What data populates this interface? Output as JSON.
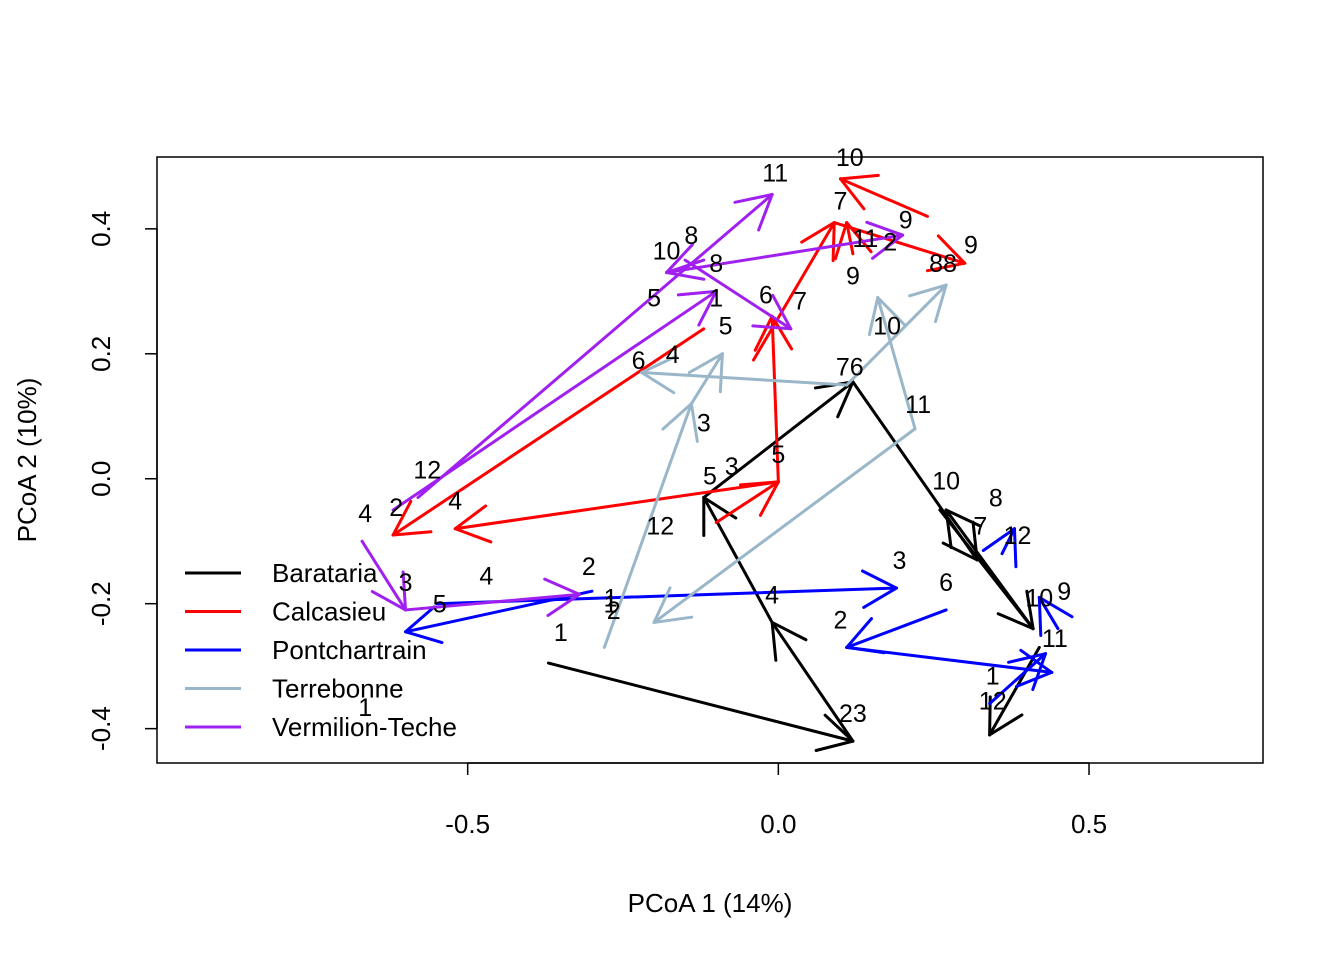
{
  "chart_data": {
    "type": "scatter",
    "title": "",
    "xlabel": "PCoA 1 (14%)",
    "ylabel": "PCoA 2 (10%)",
    "xlim": [
      -1.0,
      0.78
    ],
    "ylim": [
      -0.455,
      0.515
    ],
    "xticks": [
      -0.5,
      0.0,
      0.5
    ],
    "xtick_labels": [
      "-0.5",
      "0.0",
      "0.5"
    ],
    "yticks": [
      -0.4,
      -0.2,
      0.0,
      0.2,
      0.4
    ],
    "ytick_labels": [
      "-0.4",
      "-0.2",
      "0.0",
      "0.2",
      "0.4"
    ],
    "grid": false,
    "legend_position": "bottom-left",
    "series": [
      {
        "name": "Barataria",
        "color": "#000000",
        "points": [
          {
            "label": "1",
            "x": 0.34,
            "y": -0.41
          },
          {
            "label": "2",
            "x": 0.12,
            "y": -0.42
          },
          {
            "label": "3",
            "x": 0.12,
            "y": -0.42
          },
          {
            "label": "4",
            "x": -0.01,
            "y": -0.23
          },
          {
            "label": "5",
            "x": -0.12,
            "y": -0.03
          },
          {
            "label": "6",
            "x": 0.12,
            "y": 0.155
          },
          {
            "label": "7",
            "x": 0.32,
            "y": -0.13
          },
          {
            "label": "8",
            "x": 0.36,
            "y": -0.12
          },
          {
            "label": "9",
            "x": 0.41,
            "y": -0.24
          },
          {
            "label": "10",
            "x": 0.27,
            "y": -0.05
          },
          {
            "label": "11",
            "x": 0.42,
            "y": -0.27
          },
          {
            "label": "12",
            "x": 0.36,
            "y": -0.4
          }
        ]
      },
      {
        "name": "Calcasieu",
        "color": "#ff0000",
        "points": [
          {
            "label": "1",
            "x": 0.08,
            "y": 0.36
          },
          {
            "label": "2",
            "x": 0.08,
            "y": 0.36
          },
          {
            "label": "3",
            "x": 0.1,
            "y": 0.36
          },
          {
            "label": "4",
            "x": -0.52,
            "y": -0.08
          },
          {
            "label": "5",
            "x": 0.0,
            "y": -0.005
          },
          {
            "label": "6",
            "x": -0.01,
            "y": 0.26
          },
          {
            "label": "7",
            "x": 0.1,
            "y": 0.48
          },
          {
            "label": "8",
            "x": 0.3,
            "y": 0.345
          },
          {
            "label": "9",
            "x": 0.11,
            "y": 0.37
          },
          {
            "label": "10",
            "x": 0.12,
            "y": 0.48
          },
          {
            "label": "11",
            "x": 0.09,
            "y": 0.41
          },
          {
            "label": "12",
            "x": -0.62,
            "y": -0.09
          }
        ]
      },
      {
        "name": "Pontchartrain",
        "color": "#0000ff",
        "points": [
          {
            "label": "1",
            "x": -0.54,
            "y": -0.24
          },
          {
            "label": "2",
            "x": 0.11,
            "y": -0.27
          },
          {
            "label": "3",
            "x": 0.19,
            "y": -0.175
          },
          {
            "label": "4",
            "x": -0.47,
            "y": -0.2
          },
          {
            "label": "5",
            "x": -0.56,
            "y": -0.2
          },
          {
            "label": "6",
            "x": 0.27,
            "y": -0.21
          },
          {
            "label": "7",
            "x": 0.44,
            "y": -0.31
          },
          {
            "label": "8",
            "x": 0.38,
            "y": -0.08
          },
          {
            "label": "9",
            "x": 0.45,
            "y": -0.24
          },
          {
            "label": "10",
            "x": 0.43,
            "y": -0.19
          },
          {
            "label": "11",
            "x": 0.44,
            "y": -0.27
          },
          {
            "label": "12",
            "x": 0.36,
            "y": -0.36
          }
        ]
      },
      {
        "name": "Terrebonne",
        "color": "#9ab7c9",
        "points": [
          {
            "label": "1",
            "x": -0.28,
            "y": -0.27
          },
          {
            "label": "2",
            "x": -0.28,
            "y": -0.27
          },
          {
            "label": "3",
            "x": -0.14,
            "y": 0.12
          },
          {
            "label": "4",
            "x": -0.09,
            "y": 0.2
          },
          {
            "label": "5",
            "x": -0.12,
            "y": -0.015
          },
          {
            "label": "6",
            "x": 0.11,
            "y": 0.15
          },
          {
            "label": "7",
            "x": 0.11,
            "y": 0.15
          },
          {
            "label": "8",
            "x": 0.27,
            "y": 0.31
          },
          {
            "label": "9",
            "x": 0.16,
            "y": 0.28
          },
          {
            "label": "10",
            "x": 0.17,
            "y": 0.21
          },
          {
            "label": "11",
            "x": 0.22,
            "y": 0.08
          },
          {
            "label": "12",
            "x": -0.2,
            "y": -0.22
          }
        ]
      },
      {
        "name": "Vermilion-Teche",
        "color": "#a020f0",
        "points": [
          {
            "label": "1",
            "x": -0.32,
            "y": -0.185
          },
          {
            "label": "2",
            "x": -0.32,
            "y": -0.185
          },
          {
            "label": "3",
            "x": -0.6,
            "y": -0.21
          },
          {
            "label": "4",
            "x": -0.67,
            "y": -0.1
          },
          {
            "label": "5",
            "x": -0.6,
            "y": -0.215
          },
          {
            "label": "6",
            "x": 0.02,
            "y": 0.24
          },
          {
            "label": "7",
            "x": 0.02,
            "y": 0.24
          },
          {
            "label": "8",
            "x": 0.2,
            "y": 0.39
          },
          {
            "label": "9",
            "x": 0.2,
            "y": 0.39
          },
          {
            "label": "10",
            "x": -0.18,
            "y": 0.33
          },
          {
            "label": "11",
            "x": -0.01,
            "y": 0.455
          },
          {
            "label": "12",
            "x": -0.58,
            "y": -0.03
          }
        ]
      }
    ],
    "arrows": [
      {
        "series": "Barataria",
        "from": [
          -0.37,
          -0.295
        ],
        "to": [
          0.12,
          -0.42
        ]
      },
      {
        "series": "Barataria",
        "from": [
          0.12,
          -0.42
        ],
        "to": [
          -0.01,
          -0.23
        ]
      },
      {
        "series": "Barataria",
        "from": [
          -0.01,
          -0.23
        ],
        "to": [
          -0.12,
          -0.03
        ]
      },
      {
        "series": "Barataria",
        "from": [
          -0.12,
          -0.03
        ],
        "to": [
          0.12,
          0.155
        ]
      },
      {
        "series": "Barataria",
        "from": [
          0.12,
          0.155
        ],
        "to": [
          0.32,
          -0.13
        ]
      },
      {
        "series": "Barataria",
        "from": [
          0.26,
          -0.05
        ],
        "to": [
          0.41,
          -0.24
        ]
      },
      {
        "series": "Barataria",
        "from": [
          0.41,
          -0.24
        ],
        "to": [
          0.27,
          -0.05
        ]
      },
      {
        "series": "Barataria",
        "from": [
          0.42,
          -0.27
        ],
        "to": [
          0.34,
          -0.41
        ]
      },
      {
        "series": "Calcasieu",
        "from": [
          0.0,
          -0.005
        ],
        "to": [
          -0.52,
          -0.08
        ]
      },
      {
        "series": "Calcasieu",
        "from": [
          -0.12,
          0.24
        ],
        "to": [
          -0.62,
          -0.09
        ]
      },
      {
        "series": "Calcasieu",
        "from": [
          -0.1,
          -0.07
        ],
        "to": [
          0.0,
          -0.005
        ]
      },
      {
        "series": "Calcasieu",
        "from": [
          0.0,
          -0.005
        ],
        "to": [
          -0.01,
          0.26
        ]
      },
      {
        "series": "Calcasieu",
        "from": [
          -0.04,
          0.19
        ],
        "to": [
          0.09,
          0.41
        ]
      },
      {
        "series": "Calcasieu",
        "from": [
          0.09,
          0.41
        ],
        "to": [
          0.3,
          0.345
        ]
      },
      {
        "series": "Calcasieu",
        "from": [
          0.24,
          0.42
        ],
        "to": [
          0.1,
          0.48
        ]
      },
      {
        "series": "Calcasieu",
        "from": [
          0.12,
          0.36
        ],
        "to": [
          0.11,
          0.41
        ]
      },
      {
        "series": "Pontchartrain",
        "from": [
          -0.3,
          -0.18
        ],
        "to": [
          -0.6,
          -0.245
        ]
      },
      {
        "series": "Pontchartrain",
        "from": [
          -0.55,
          -0.2
        ],
        "to": [
          0.19,
          -0.175
        ]
      },
      {
        "series": "Pontchartrain",
        "from": [
          0.27,
          -0.21
        ],
        "to": [
          0.11,
          -0.27
        ]
      },
      {
        "series": "Pontchartrain",
        "from": [
          0.11,
          -0.27
        ],
        "to": [
          0.44,
          -0.31
        ]
      },
      {
        "series": "Pontchartrain",
        "from": [
          0.36,
          -0.12
        ],
        "to": [
          0.38,
          -0.08
        ]
      },
      {
        "series": "Pontchartrain",
        "from": [
          0.45,
          -0.24
        ],
        "to": [
          0.42,
          -0.19
        ]
      },
      {
        "series": "Pontchartrain",
        "from": [
          0.34,
          -0.36
        ],
        "to": [
          0.43,
          -0.28
        ]
      },
      {
        "series": "Terrebonne",
        "from": [
          -0.28,
          -0.27
        ],
        "to": [
          -0.14,
          0.12
        ]
      },
      {
        "series": "Terrebonne",
        "from": [
          -0.14,
          0.12
        ],
        "to": [
          -0.09,
          0.2
        ]
      },
      {
        "series": "Terrebonne",
        "from": [
          0.11,
          0.15
        ],
        "to": [
          -0.22,
          0.17
        ]
      },
      {
        "series": "Terrebonne",
        "from": [
          0.11,
          0.15
        ],
        "to": [
          0.27,
          0.31
        ]
      },
      {
        "series": "Terrebonne",
        "from": [
          0.22,
          0.08
        ],
        "to": [
          0.16,
          0.29
        ]
      },
      {
        "series": "Terrebonne",
        "from": [
          0.22,
          0.08
        ],
        "to": [
          -0.2,
          -0.23
        ]
      },
      {
        "series": "Vermilion-Teche",
        "from": [
          -0.58,
          -0.03
        ],
        "to": [
          -0.01,
          0.455
        ]
      },
      {
        "series": "Vermilion-Teche",
        "from": [
          -0.62,
          -0.05
        ],
        "to": [
          -0.1,
          0.3
        ]
      },
      {
        "series": "Vermilion-Teche",
        "from": [
          -0.18,
          0.33
        ],
        "to": [
          0.2,
          0.39
        ]
      },
      {
        "series": "Vermilion-Teche",
        "from": [
          -0.15,
          0.35
        ],
        "to": [
          0.02,
          0.24
        ]
      },
      {
        "series": "Vermilion-Teche",
        "from": [
          -0.67,
          -0.1
        ],
        "to": [
          -0.6,
          -0.21
        ]
      },
      {
        "series": "Vermilion-Teche",
        "from": [
          -0.6,
          -0.21
        ],
        "to": [
          -0.32,
          -0.185
        ]
      },
      {
        "series": "Vermilion-Teche",
        "from": [
          -0.12,
          0.35
        ],
        "to": [
          -0.18,
          0.33
        ]
      }
    ],
    "point_labels": [
      {
        "series": "Barataria",
        "text": "1",
        "x": 0.345,
        "y": -0.315
      },
      {
        "series": "Barataria",
        "text": "12",
        "x": 0.345,
        "y": -0.355
      },
      {
        "series": "Barataria",
        "text": "23",
        "x": 0.12,
        "y": -0.375
      },
      {
        "series": "Barataria",
        "text": "4",
        "x": -0.01,
        "y": -0.185
      },
      {
        "series": "Barataria",
        "text": "6",
        "x": 0.27,
        "y": -0.165
      },
      {
        "series": "Barataria",
        "text": "7",
        "x": 0.325,
        "y": -0.075
      },
      {
        "series": "Barataria",
        "text": "8",
        "x": 0.35,
        "y": -0.03
      },
      {
        "series": "Barataria",
        "text": "10",
        "x": 0.27,
        "y": -0.003
      },
      {
        "series": "Barataria",
        "text": "12",
        "x": 0.385,
        "y": -0.09
      },
      {
        "series": "Calcasieu",
        "text": "4",
        "x": -0.52,
        "y": -0.035
      },
      {
        "series": "Calcasieu",
        "text": "2",
        "x": -0.615,
        "y": -0.045
      },
      {
        "series": "Calcasieu",
        "text": "5",
        "x": 0.0,
        "y": 0.04
      },
      {
        "series": "Calcasieu",
        "text": "5",
        "x": -0.085,
        "y": 0.245
      },
      {
        "series": "Calcasieu",
        "text": "6",
        "x": -0.02,
        "y": 0.295
      },
      {
        "series": "Calcasieu",
        "text": "7",
        "x": 0.035,
        "y": 0.285
      },
      {
        "series": "Calcasieu",
        "text": "7",
        "x": 0.1,
        "y": 0.445
      },
      {
        "series": "Calcasieu",
        "text": "10",
        "x": 0.115,
        "y": 0.515
      },
      {
        "series": "Calcasieu",
        "text": "9",
        "x": 0.205,
        "y": 0.415
      },
      {
        "series": "Calcasieu",
        "text": "9",
        "x": 0.31,
        "y": 0.375
      },
      {
        "series": "Calcasieu",
        "text": "9",
        "x": 0.12,
        "y": 0.325
      },
      {
        "series": "Calcasieu",
        "text": "88",
        "x": 0.265,
        "y": 0.345
      },
      {
        "series": "Calcasieu",
        "text": "11",
        "x": 0.14,
        "y": 0.385
      },
      {
        "series": "Calcasieu",
        "text": "2",
        "x": 0.18,
        "y": 0.38
      },
      {
        "series": "Pontchartrain",
        "text": "1",
        "x": -0.35,
        "y": -0.245
      },
      {
        "series": "Pontchartrain",
        "text": "2",
        "x": 0.1,
        "y": -0.225
      },
      {
        "series": "Pontchartrain",
        "text": "3",
        "x": 0.195,
        "y": -0.13
      },
      {
        "series": "Pontchartrain",
        "text": "4",
        "x": -0.47,
        "y": -0.155
      },
      {
        "series": "Pontchartrain",
        "text": "10",
        "x": 0.42,
        "y": -0.19
      },
      {
        "series": "Pontchartrain",
        "text": "9",
        "x": 0.46,
        "y": -0.18
      },
      {
        "series": "Pontchartrain",
        "text": "11",
        "x": 0.445,
        "y": -0.255
      },
      {
        "series": "Terrebonne",
        "text": "1",
        "x": -0.27,
        "y": -0.19
      },
      {
        "series": "Terrebonne",
        "text": "2",
        "x": -0.265,
        "y": -0.21
      },
      {
        "series": "Terrebonne",
        "text": "3",
        "x": -0.12,
        "y": 0.09
      },
      {
        "series": "Terrebonne",
        "text": "3",
        "x": -0.075,
        "y": 0.02
      },
      {
        "series": "Terrebonne",
        "text": "4",
        "x": -0.17,
        "y": 0.2
      },
      {
        "series": "Terrebonne",
        "text": "5",
        "x": -0.11,
        "y": 0.005
      },
      {
        "series": "Terrebonne",
        "text": "6",
        "x": -0.225,
        "y": 0.19
      },
      {
        "series": "Terrebonne",
        "text": "76",
        "x": 0.115,
        "y": 0.18
      },
      {
        "series": "Terrebonne",
        "text": "10",
        "x": 0.175,
        "y": 0.245
      },
      {
        "series": "Terrebonne",
        "text": "11",
        "x": 0.225,
        "y": 0.12
      },
      {
        "series": "Terrebonne",
        "text": "12",
        "x": -0.19,
        "y": -0.075
      },
      {
        "series": "Vermilion-Teche",
        "text": "1",
        "x": -0.665,
        "y": -0.365
      },
      {
        "series": "Vermilion-Teche",
        "text": "1",
        "x": -0.27,
        "y": -0.2
      },
      {
        "series": "Vermilion-Teche",
        "text": "2",
        "x": -0.305,
        "y": -0.14
      },
      {
        "series": "Vermilion-Teche",
        "text": "3",
        "x": -0.6,
        "y": -0.165
      },
      {
        "series": "Vermilion-Teche",
        "text": "4",
        "x": -0.665,
        "y": -0.055
      },
      {
        "series": "Vermilion-Teche",
        "text": "5",
        "x": -0.545,
        "y": -0.2
      },
      {
        "series": "Vermilion-Teche",
        "text": "5",
        "x": -0.2,
        "y": 0.29
      },
      {
        "series": "Vermilion-Teche",
        "text": "1",
        "x": -0.1,
        "y": 0.29
      },
      {
        "series": "Vermilion-Teche",
        "text": "8",
        "x": -0.14,
        "y": 0.39
      },
      {
        "series": "Vermilion-Teche",
        "text": "10",
        "x": -0.18,
        "y": 0.365
      },
      {
        "series": "Vermilion-Teche",
        "text": "11",
        "x": -0.005,
        "y": 0.49
      },
      {
        "series": "Vermilion-Teche",
        "text": "12",
        "x": -0.565,
        "y": 0.015
      },
      {
        "series": "Vermilion-Teche",
        "text": "8",
        "x": -0.1,
        "y": 0.345
      }
    ]
  }
}
